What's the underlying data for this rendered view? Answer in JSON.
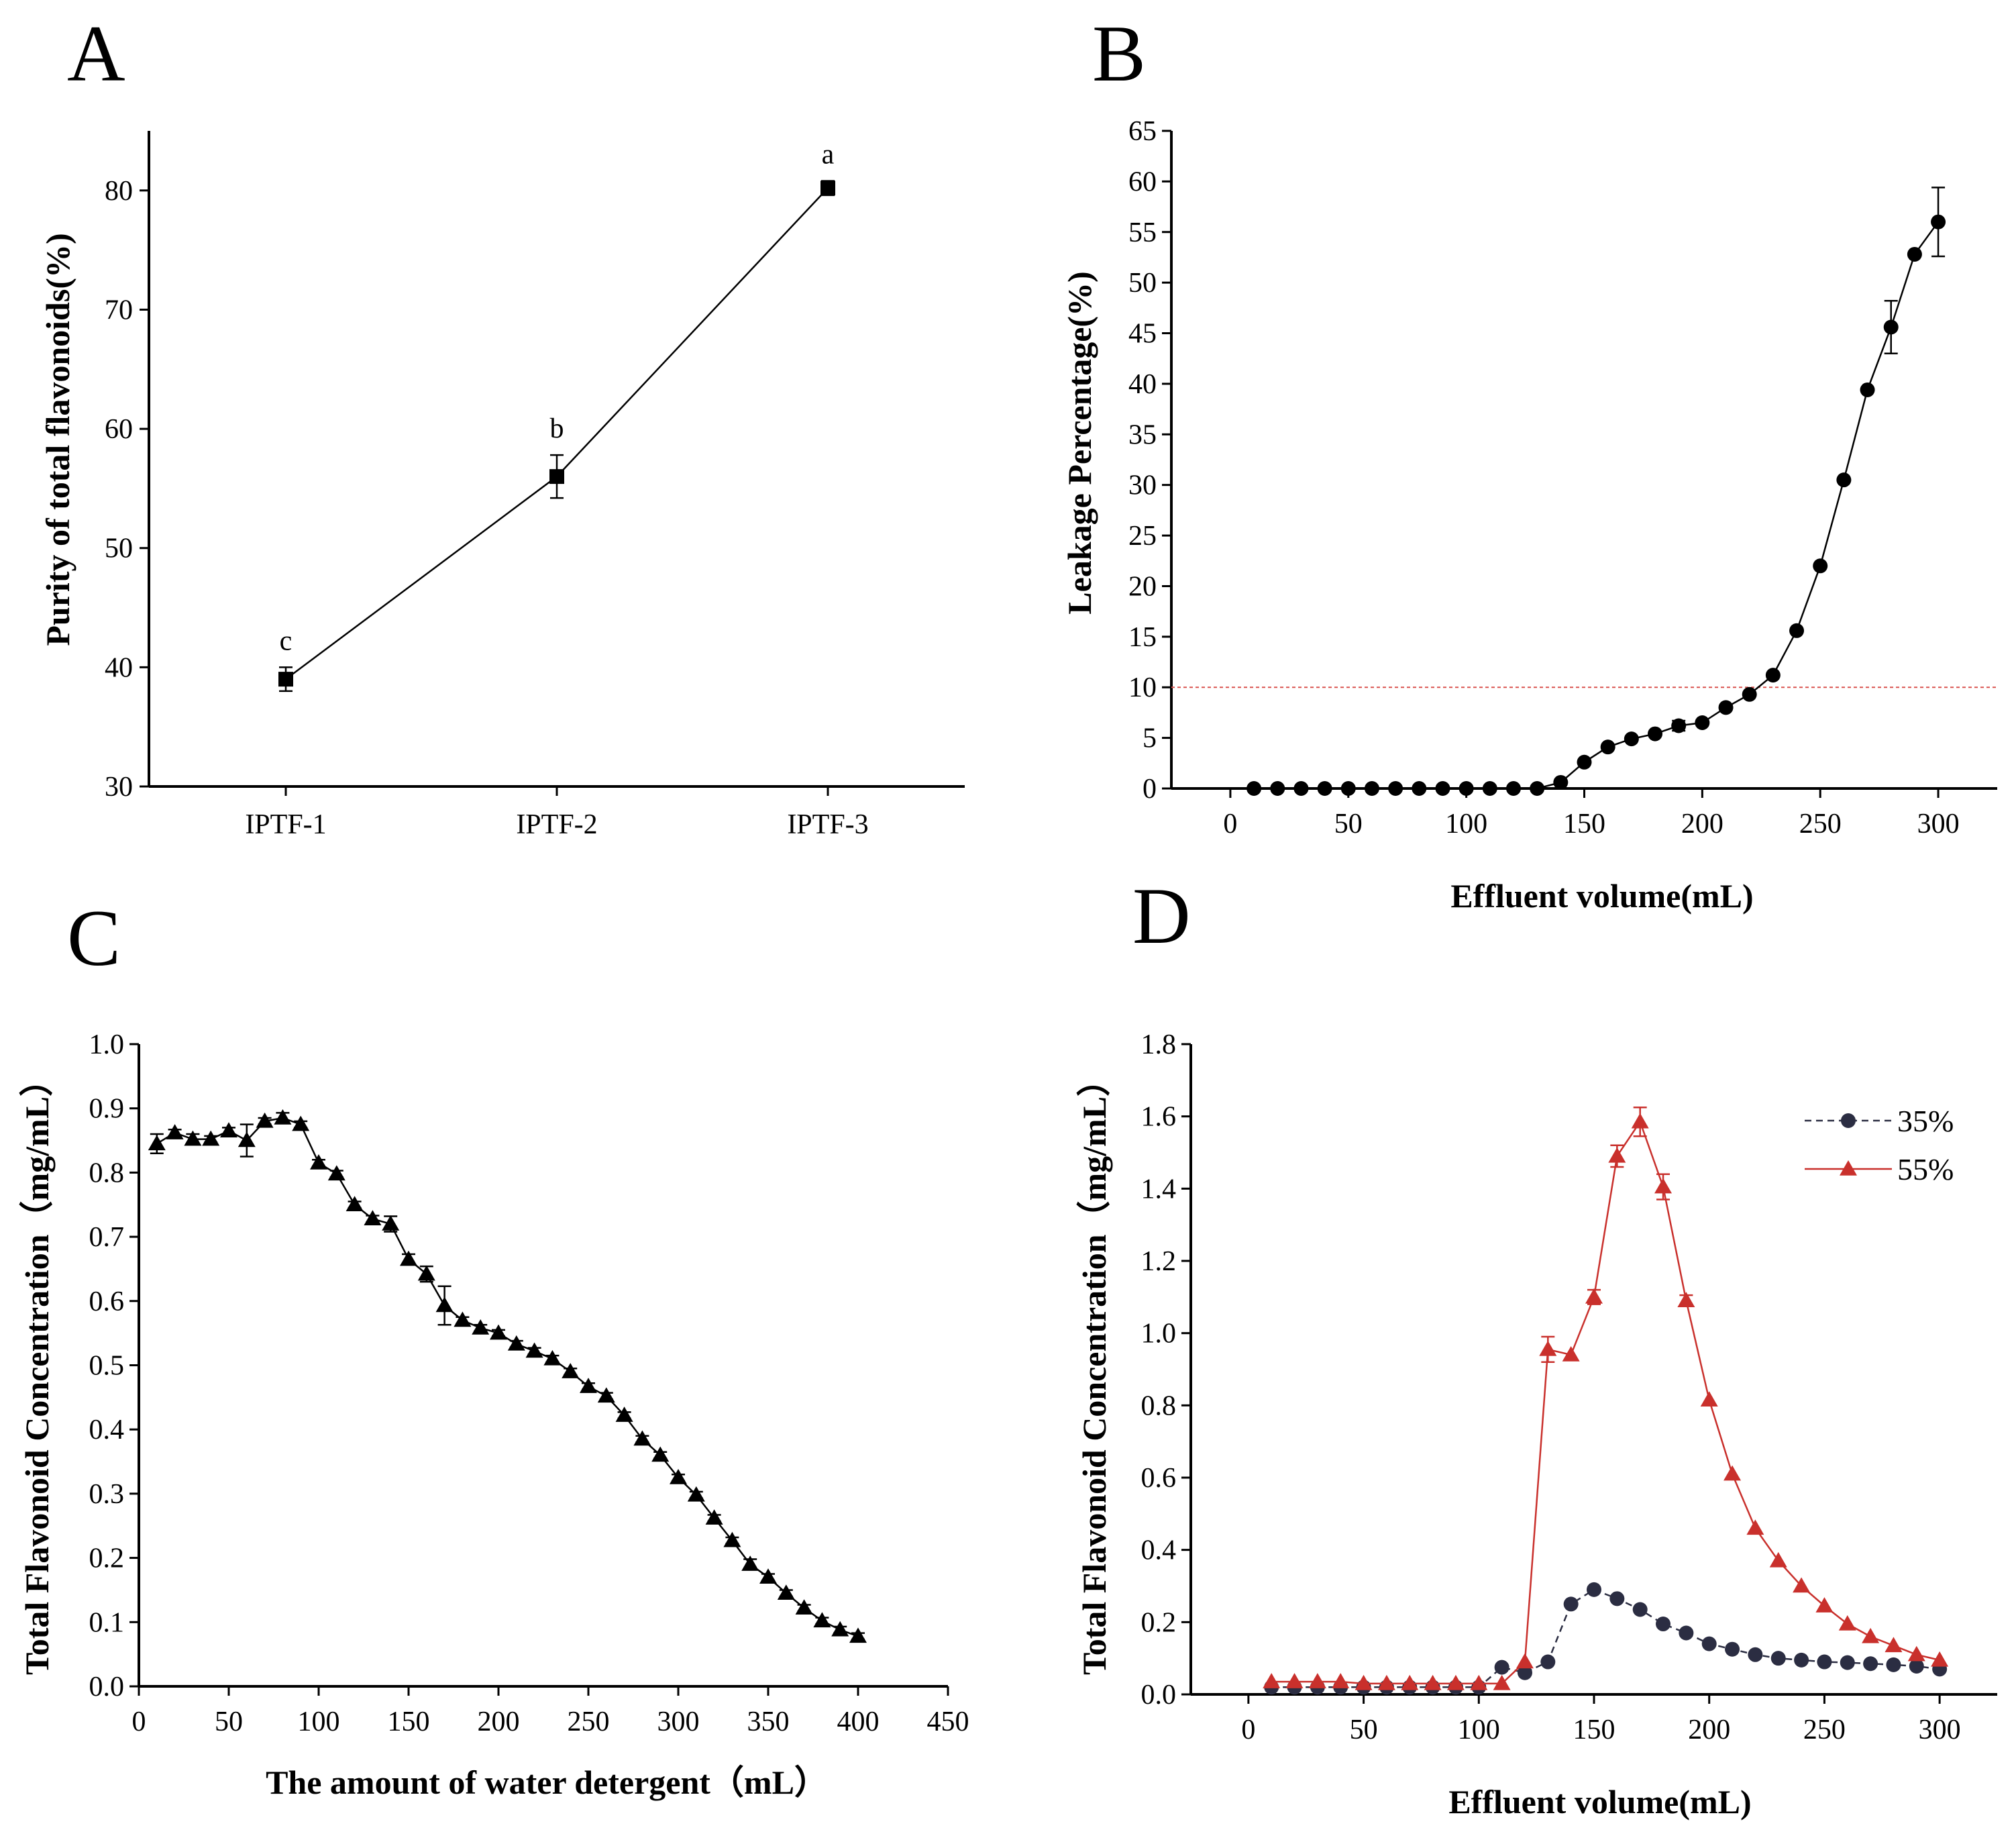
{
  "chart_data": [
    {
      "panel": "A",
      "type": "line",
      "title": "",
      "xlabel": "",
      "ylabel": "Purity of total flavonoids(%)",
      "categories": [
        "IPTF-1",
        "IPTF-2",
        "IPTF-3"
      ],
      "values": [
        39.0,
        56.0,
        80.2
      ],
      "errors": [
        1.0,
        1.8,
        0.6
      ],
      "significance": [
        "c",
        "b",
        "a"
      ],
      "ylim": [
        30,
        85
      ],
      "yticks": [
        30,
        40,
        50,
        60,
        70,
        80
      ],
      "marker": "square",
      "color": "#000000"
    },
    {
      "panel": "B",
      "type": "line",
      "title": "",
      "xlabel": "Effluent volume(mL)",
      "ylabel": "Leakage Percentage(%)",
      "xlim": [
        -25,
        325
      ],
      "ylim": [
        0,
        65
      ],
      "xticks": [
        0,
        50,
        100,
        150,
        200,
        250,
        300
      ],
      "yticks": [
        0,
        5,
        10,
        15,
        20,
        25,
        30,
        35,
        40,
        45,
        50,
        55,
        60,
        65
      ],
      "reference_line": 10,
      "reference_color": "#d9534f",
      "x": [
        10,
        20,
        30,
        40,
        50,
        60,
        70,
        80,
        90,
        100,
        110,
        120,
        130,
        140,
        150,
        160,
        170,
        180,
        190,
        200,
        210,
        220,
        230,
        240,
        250,
        260,
        270,
        280,
        290,
        300
      ],
      "values": [
        0,
        0,
        0,
        0,
        0,
        0,
        0,
        0,
        0,
        0,
        0,
        0,
        0,
        0.6,
        2.6,
        4.1,
        4.9,
        5.4,
        6.2,
        6.5,
        8.0,
        9.3,
        11.2,
        15.6,
        22.0,
        30.5,
        39.4,
        45.6,
        52.8,
        56.0
      ],
      "errors": [
        0,
        0,
        0,
        0,
        0,
        0,
        0,
        0,
        0,
        0,
        0,
        0,
        0,
        0,
        0,
        0,
        0,
        0,
        0.5,
        0,
        0,
        0,
        0,
        0,
        0,
        0,
        0,
        2.6,
        0,
        3.4
      ],
      "marker": "circle",
      "color": "#000000"
    },
    {
      "panel": "C",
      "type": "line",
      "title": "",
      "xlabel": "The amount of water detergent（mL）",
      "ylabel": "Total Flavonoid Concentration（mg/mL）",
      "xlim": [
        0,
        450
      ],
      "ylim": [
        0,
        1.0
      ],
      "xticks": [
        0,
        50,
        100,
        150,
        200,
        250,
        300,
        350,
        400,
        450
      ],
      "yticks": [
        "0.0",
        "0.1",
        "0.2",
        "0.3",
        "0.4",
        "0.5",
        "0.6",
        "0.7",
        "0.8",
        "0.9",
        "1.0"
      ],
      "x": [
        10,
        20,
        30,
        40,
        50,
        60,
        70,
        80,
        90,
        100,
        110,
        120,
        130,
        140,
        150,
        160,
        170,
        180,
        190,
        200,
        210,
        220,
        230,
        240,
        250,
        260,
        270,
        280,
        290,
        300,
        310,
        320,
        330,
        340,
        350,
        360,
        370,
        380,
        390,
        400
      ],
      "values": [
        0.845,
        0.862,
        0.852,
        0.852,
        0.865,
        0.85,
        0.88,
        0.885,
        0.875,
        0.815,
        0.798,
        0.75,
        0.728,
        0.72,
        0.665,
        0.642,
        0.593,
        0.57,
        0.558,
        0.55,
        0.533,
        0.522,
        0.51,
        0.49,
        0.467,
        0.452,
        0.422,
        0.385,
        0.36,
        0.325,
        0.298,
        0.262,
        0.227,
        0.19,
        0.17,
        0.145,
        0.122,
        0.102,
        0.088,
        0.078
      ],
      "errors": [
        0.015,
        0.005,
        0.008,
        0.005,
        0.005,
        0.025,
        0.005,
        0.008,
        0.005,
        0.005,
        0.005,
        0.005,
        0.005,
        0.012,
        0.008,
        0.012,
        0.03,
        0.005,
        0.005,
        0.005,
        0.005,
        0.005,
        0.005,
        0.005,
        0.005,
        0.005,
        0.005,
        0.005,
        0.005,
        0.005,
        0.005,
        0.005,
        0.005,
        0.008,
        0.005,
        0.005,
        0.005,
        0.005,
        0.005,
        0.005
      ],
      "marker": "triangle",
      "color": "#000000"
    },
    {
      "panel": "D",
      "type": "line",
      "title": "",
      "xlabel": "Effluent volume(mL)",
      "ylabel": "Total Flavonoid Concentration（mg/mL）",
      "xlim": [
        -25,
        325
      ],
      "ylim": [
        0,
        1.8
      ],
      "xticks": [
        0,
        50,
        100,
        150,
        200,
        250,
        300
      ],
      "yticks": [
        "0.0",
        "0.2",
        "0.4",
        "0.6",
        "0.8",
        "1.0",
        "1.2",
        "1.4",
        "1.6",
        "1.8"
      ],
      "legend_position": "top-right",
      "x": [
        10,
        20,
        30,
        40,
        50,
        60,
        70,
        80,
        90,
        100,
        110,
        120,
        130,
        140,
        150,
        160,
        170,
        180,
        190,
        200,
        210,
        220,
        230,
        240,
        250,
        260,
        270,
        280,
        290,
        300
      ],
      "series": [
        {
          "name": "35%",
          "color": "#2b2d42",
          "marker": "circle",
          "dash": true,
          "values": [
            0.02,
            0.02,
            0.02,
            0.02,
            0.02,
            0.02,
            0.02,
            0.02,
            0.02,
            0.02,
            0.075,
            0.06,
            0.09,
            0.25,
            0.29,
            0.265,
            0.235,
            0.195,
            0.17,
            0.14,
            0.125,
            0.11,
            0.1,
            0.095,
            0.09,
            0.088,
            0.085,
            0.082,
            0.078,
            0.07
          ],
          "errors": []
        },
        {
          "name": "55%",
          "color": "#c9302c",
          "marker": "triangle",
          "dash": false,
          "values": [
            0.035,
            0.035,
            0.035,
            0.035,
            0.03,
            0.03,
            0.03,
            0.03,
            0.03,
            0.03,
            0.03,
            0.09,
            0.955,
            0.94,
            1.1,
            1.49,
            1.585,
            1.405,
            1.09,
            0.815,
            0.61,
            0.46,
            0.37,
            0.3,
            0.245,
            0.195,
            0.16,
            0.135,
            0.11,
            0.095
          ],
          "errors": [
            0,
            0,
            0,
            0,
            0,
            0,
            0,
            0,
            0,
            0,
            0,
            0,
            0.035,
            0,
            0.02,
            0.03,
            0.04,
            0.035,
            0.015,
            0,
            0,
            0,
            0,
            0,
            0,
            0,
            0,
            0,
            0,
            0
          ]
        }
      ]
    }
  ]
}
